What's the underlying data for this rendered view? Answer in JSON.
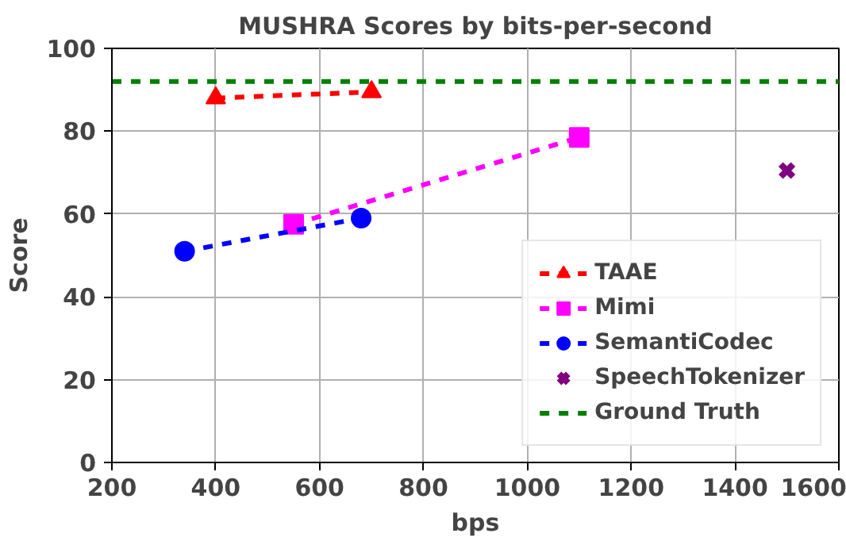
{
  "chart_data": {
    "type": "line",
    "title": "MUSHRA Scores by bits-per-second",
    "xlabel": "bps",
    "ylabel": "Score",
    "xlim": [
      200,
      1600
    ],
    "xticks": [
      200,
      400,
      600,
      800,
      1000,
      1200,
      1400,
      1600
    ],
    "ylim": [
      0,
      100
    ],
    "yticks": [
      0,
      20,
      40,
      60,
      80,
      100
    ],
    "grid": true,
    "legend": "bottom right",
    "line_style": "dashed",
    "series": [
      {
        "name": "TAAE",
        "color": "#ff0000",
        "marker": "triangle",
        "x": [
          400,
          700
        ],
        "values": [
          88,
          89.5
        ]
      },
      {
        "name": "Mimi",
        "color": "#ff00ff",
        "marker": "square",
        "x": [
          550,
          1100
        ],
        "values": [
          57.5,
          78.5
        ]
      },
      {
        "name": "SemantiCodec",
        "color": "#0000ff",
        "marker": "circle",
        "x": [
          340,
          680
        ],
        "values": [
          51,
          59
        ]
      },
      {
        "name": "SpeechTokenizer",
        "type": "scatter",
        "color": "#800080",
        "marker": "cross",
        "x": [
          1500
        ],
        "values": [
          70.5
        ]
      },
      {
        "name": "Ground Truth",
        "color": "#008000",
        "marker": "none",
        "x": [
          200,
          1600
        ],
        "values": [
          92,
          92
        ]
      }
    ]
  }
}
